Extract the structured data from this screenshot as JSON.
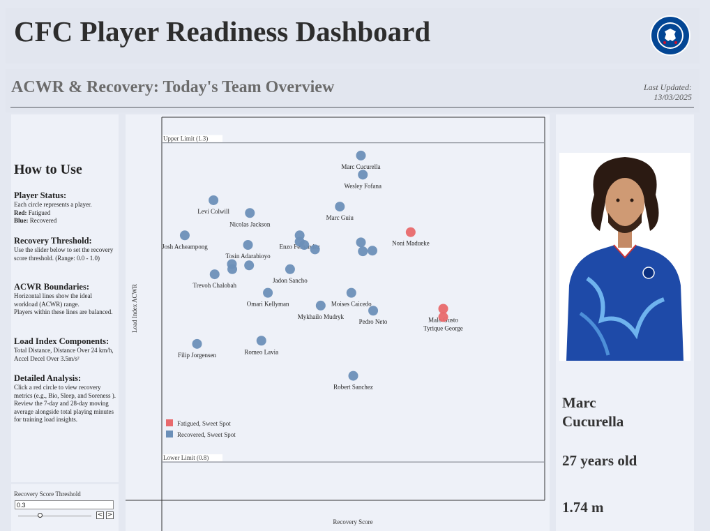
{
  "header": {
    "title": "CFC Player Readiness Dashboard",
    "logo_text": "CHELSEA FOOTBALL CLUB"
  },
  "subheader": {
    "title": "ACWR & Recovery: Today's Team Overview",
    "updated_label": "Last Updated:",
    "updated_date": "13/03/2025"
  },
  "howto": {
    "title": "How to Use",
    "status_title": "Player Status:",
    "status_text": "Each circle represents a player.",
    "red_label": "Red:",
    "red_text": "Fatigued",
    "blue_label": "Blue:",
    "blue_text": "Recovered",
    "threshold_title": "Recovery Threshold:",
    "threshold_text": "Use the slider below to set the recovery score threshold. (Range: 0.0 - 1.0)",
    "acwr_title": "ACWR Boundaries:",
    "acwr_text1": "Horizontal lines show the ideal workload (ACWR) range.",
    "acwr_text2": "Players within these lines are balanced.",
    "load_title": "Load Index Components:",
    "load_text": "Total Distance, Distance Over 24 km/h, Accel Decel Over 3.5m/s²",
    "detail_title": "Detailed Analysis:",
    "detail_text1": "Click a red circle to view recovery metrics (e.g., Bio, Sleep, and Soreness ).",
    "detail_text2": "Review the 7-day and 28-day moving average alongside total playing minutes for training load insights."
  },
  "slider": {
    "label": "Recovery Score Threshold",
    "value": "0.3",
    "fraction": 0.3,
    "prev_symbol": "<",
    "next_symbol": ">"
  },
  "player": {
    "name": "Marc Cucurella",
    "age": "27 years old",
    "height": "1.74 m"
  },
  "colors": {
    "fatigued": "#e8696c",
    "recovered": "#6b8fb8"
  },
  "chart_data": {
    "type": "scatter",
    "xlabel": "Recovery Score",
    "ylabel": "Load Index ACWR",
    "xlim": [
      0,
      1
    ],
    "ylim": [
      0.74,
      1.34
    ],
    "upper_label": "Upper Limit (1.3)",
    "upper_value": 1.3,
    "lower_label": "Lower Limit (0.8)",
    "lower_value": 0.8,
    "legend": [
      {
        "name": "Fatigued, Sweet Spot",
        "status": "fatigued"
      },
      {
        "name": "Recovered, Sweet Spot",
        "status": "recovered"
      }
    ],
    "legend_placement": "bottom-left",
    "points": [
      {
        "name": "Marc Cucurella",
        "x": 0.52,
        "y": 1.28,
        "status": "recovered"
      },
      {
        "name": "Wesley Fofana",
        "x": 0.525,
        "y": 1.25,
        "status": "recovered"
      },
      {
        "name": "Levi Colwill",
        "x": 0.135,
        "y": 1.21,
        "status": "recovered"
      },
      {
        "name": "Marc Guiu",
        "x": 0.465,
        "y": 1.2,
        "status": "recovered"
      },
      {
        "name": "Nicolas Jackson",
        "x": 0.23,
        "y": 1.19,
        "status": "recovered"
      },
      {
        "name": "Noni Madueke",
        "x": 0.65,
        "y": 1.16,
        "status": "fatigued"
      },
      {
        "name": "Enzo Fernandez",
        "x": 0.36,
        "y": 1.155,
        "status": "recovered"
      },
      {
        "name": "Josh Acheampong",
        "x": 0.06,
        "y": 1.155,
        "status": "recovered"
      },
      {
        "name": "Tosin  Adarabioyo",
        "x": 0.225,
        "y": 1.14,
        "status": "recovered"
      },
      {
        "name": "",
        "x": 0.36,
        "y": 1.145,
        "status": "recovered"
      },
      {
        "name": "",
        "x": 0.372,
        "y": 1.14,
        "status": "recovered"
      },
      {
        "name": "",
        "x": 0.4,
        "y": 1.133,
        "status": "recovered"
      },
      {
        "name": "",
        "x": 0.52,
        "y": 1.144,
        "status": "recovered"
      },
      {
        "name": "",
        "x": 0.525,
        "y": 1.13,
        "status": "recovered"
      },
      {
        "name": "",
        "x": 0.55,
        "y": 1.131,
        "status": "recovered"
      },
      {
        "name": "",
        "x": 0.183,
        "y": 1.11,
        "status": "recovered"
      },
      {
        "name": "",
        "x": 0.184,
        "y": 1.102,
        "status": "recovered"
      },
      {
        "name": "",
        "x": 0.228,
        "y": 1.108,
        "status": "recovered"
      },
      {
        "name": "Jadon  Sancho",
        "x": 0.335,
        "y": 1.102,
        "status": "recovered"
      },
      {
        "name": "Trevoh Chalobah",
        "x": 0.138,
        "y": 1.094,
        "status": "recovered"
      },
      {
        "name": "Omari  Kellyman",
        "x": 0.277,
        "y": 1.065,
        "status": "recovered"
      },
      {
        "name": "Moises Caicedo",
        "x": 0.495,
        "y": 1.065,
        "status": "recovered"
      },
      {
        "name": "Mykhailo Mudryk",
        "x": 0.415,
        "y": 1.045,
        "status": "recovered"
      },
      {
        "name": "Pedro  Neto",
        "x": 0.552,
        "y": 1.037,
        "status": "recovered"
      },
      {
        "name": "Malo Gusto",
        "x": 0.735,
        "y": 1.04,
        "status": "fatigued"
      },
      {
        "name": "Tyrique  George",
        "x": 0.735,
        "y": 1.027,
        "status": "fatigued"
      },
      {
        "name": "Filip Jorgensen",
        "x": 0.092,
        "y": 0.985,
        "status": "recovered"
      },
      {
        "name": "Romeo Lavia",
        "x": 0.26,
        "y": 0.99,
        "status": "recovered"
      },
      {
        "name": "Robert Sanchez",
        "x": 0.5,
        "y": 0.935,
        "status": "recovered"
      }
    ]
  }
}
